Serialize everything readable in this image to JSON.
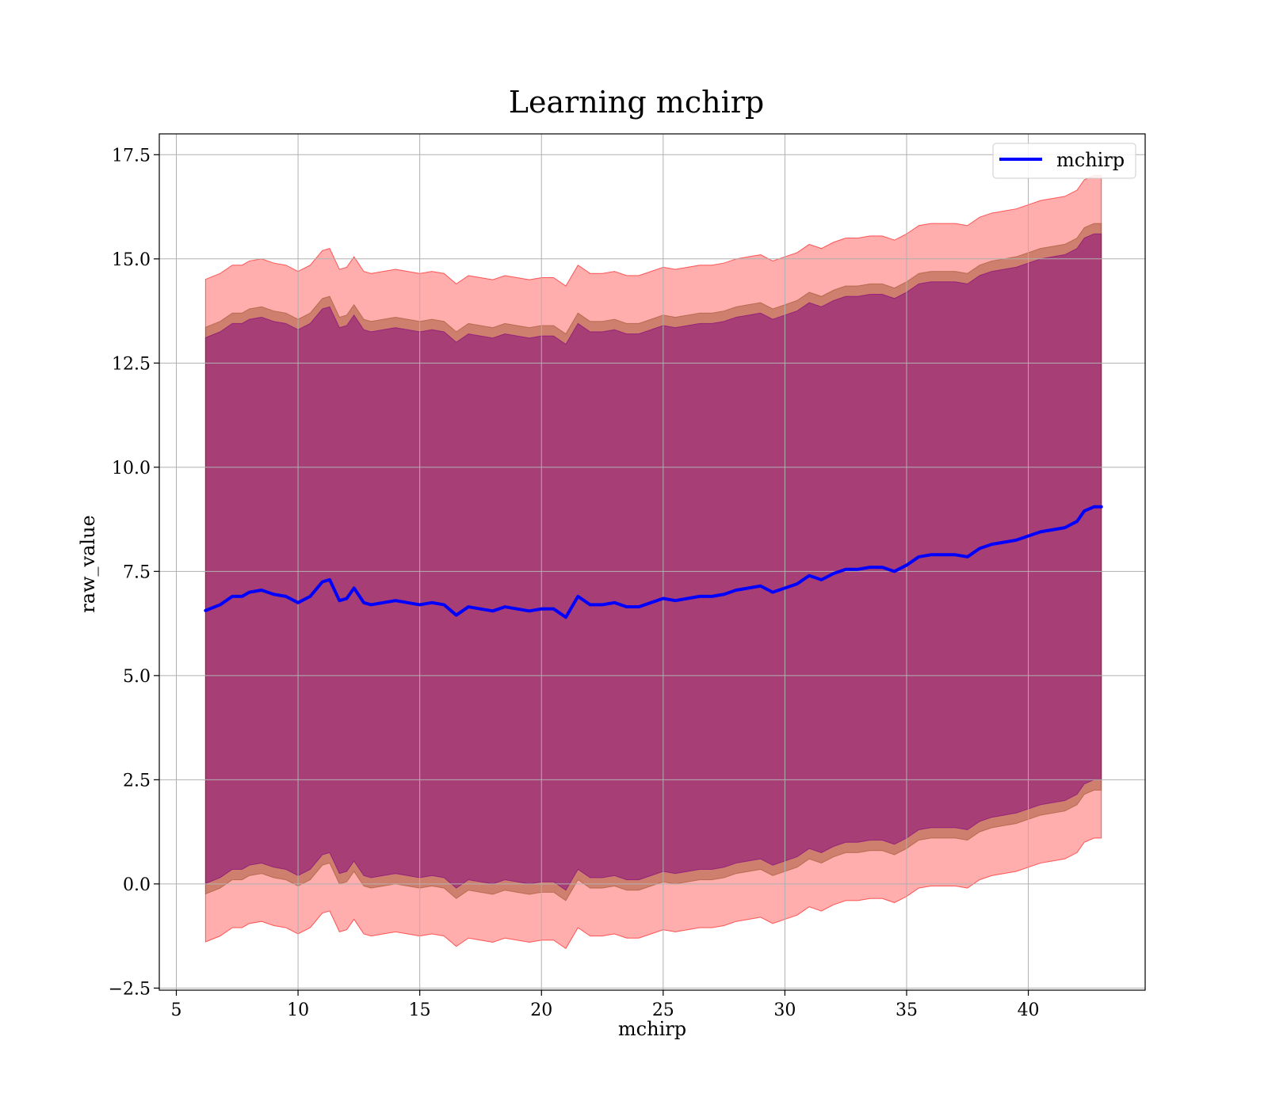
{
  "chart_data": {
    "type": "line",
    "title": "Learning mchirp",
    "xlabel": "mchirp",
    "ylabel": "raw_value",
    "xlim": [
      4.3,
      44.8
    ],
    "ylim": [
      -2.55,
      18.0
    ],
    "x_ticks": [
      5,
      10,
      15,
      20,
      25,
      30,
      35,
      40
    ],
    "x_tick_labels": [
      "5",
      "10",
      "15",
      "20",
      "25",
      "30",
      "35",
      "40"
    ],
    "y_ticks": [
      -2.5,
      0.0,
      2.5,
      5.0,
      7.5,
      10.0,
      12.5,
      15.0,
      17.5
    ],
    "y_tick_labels": [
      "−2.5",
      "0.0",
      "2.5",
      "5.0",
      "7.5",
      "10.0",
      "12.5",
      "15.0",
      "17.5"
    ],
    "grid": true,
    "legend_position": "top-right",
    "colors": {
      "line": "#0000ff",
      "outer_band": "#ff0000",
      "middle_band": "#a0522d",
      "inner_band": "#800080",
      "grid": "#b0b0b0"
    },
    "series": [
      {
        "name": "mchirp",
        "x": [
          6.2,
          6.8,
          7.3,
          7.7,
          8.0,
          8.5,
          9.0,
          9.5,
          10.0,
          10.5,
          11.0,
          11.3,
          11.7,
          12.0,
          12.3,
          12.7,
          13.0,
          13.5,
          14.0,
          14.5,
          15.0,
          15.5,
          16.0,
          16.5,
          17.0,
          17.5,
          18.0,
          18.5,
          19.0,
          19.5,
          20.0,
          20.5,
          21.0,
          21.5,
          22.0,
          22.5,
          23.0,
          23.5,
          24.0,
          24.5,
          25.0,
          25.5,
          26.0,
          26.5,
          27.0,
          27.5,
          28.0,
          28.5,
          29.0,
          29.5,
          30.0,
          30.5,
          31.0,
          31.5,
          32.0,
          32.5,
          33.0,
          33.5,
          34.0,
          34.5,
          35.0,
          35.5,
          36.0,
          36.5,
          37.0,
          37.5,
          38.0,
          38.5,
          39.0,
          39.5,
          40.0,
          40.5,
          41.0,
          41.5,
          42.0,
          42.3,
          42.7,
          43.0
        ],
        "values": [
          6.56,
          6.7,
          6.9,
          6.9,
          7.0,
          7.05,
          6.95,
          6.9,
          6.75,
          6.9,
          7.25,
          7.3,
          6.8,
          6.85,
          7.1,
          6.75,
          6.7,
          6.75,
          6.8,
          6.75,
          6.7,
          6.75,
          6.7,
          6.45,
          6.65,
          6.6,
          6.55,
          6.65,
          6.6,
          6.55,
          6.6,
          6.6,
          6.4,
          6.9,
          6.7,
          6.7,
          6.75,
          6.65,
          6.65,
          6.75,
          6.85,
          6.8,
          6.85,
          6.9,
          6.9,
          6.95,
          7.05,
          7.1,
          7.15,
          7.0,
          7.1,
          7.2,
          7.4,
          7.3,
          7.45,
          7.55,
          7.55,
          7.6,
          7.6,
          7.5,
          7.65,
          7.85,
          7.9,
          7.9,
          7.9,
          7.85,
          8.05,
          8.15,
          8.2,
          8.25,
          8.35,
          8.45,
          8.5,
          8.55,
          8.7,
          8.95,
          9.05,
          9.05
        ]
      }
    ],
    "bands": [
      {
        "x": [
          6.2,
          6.8,
          7.3,
          7.7,
          8.0,
          8.5,
          9.0,
          9.5,
          10.0,
          10.5,
          11.0,
          11.3,
          11.7,
          12.0,
          12.3,
          12.7,
          13.0,
          13.5,
          14.0,
          14.5,
          15.0,
          15.5,
          16.0,
          16.5,
          17.0,
          17.5,
          18.0,
          18.5,
          19.0,
          19.5,
          20.0,
          20.5,
          21.0,
          21.5,
          22.0,
          22.5,
          23.0,
          23.5,
          24.0,
          24.5,
          25.0,
          25.5,
          26.0,
          26.5,
          27.0,
          27.5,
          28.0,
          28.5,
          29.0,
          29.5,
          30.0,
          30.5,
          31.0,
          31.5,
          32.0,
          32.5,
          33.0,
          33.5,
          34.0,
          34.5,
          35.0,
          35.5,
          36.0,
          36.5,
          37.0,
          37.5,
          38.0,
          38.5,
          39.0,
          39.5,
          40.0,
          40.5,
          41.0,
          41.5,
          42.0,
          42.3,
          42.7,
          43.0
        ],
        "lower_offset": -7.95,
        "upper_offset": 7.95
      },
      {
        "x": [
          6.2,
          6.8,
          7.3,
          7.7,
          8.0,
          8.5,
          9.0,
          9.5,
          10.0,
          10.5,
          11.0,
          11.3,
          11.7,
          12.0,
          12.3,
          12.7,
          13.0,
          13.5,
          14.0,
          14.5,
          15.0,
          15.5,
          16.0,
          16.5,
          17.0,
          17.5,
          18.0,
          18.5,
          19.0,
          19.5,
          20.0,
          20.5,
          21.0,
          21.5,
          22.0,
          22.5,
          23.0,
          23.5,
          24.0,
          24.5,
          25.0,
          25.5,
          26.0,
          26.5,
          27.0,
          27.5,
          28.0,
          28.5,
          29.0,
          29.5,
          30.0,
          30.5,
          31.0,
          31.5,
          32.0,
          32.5,
          33.0,
          33.5,
          34.0,
          34.5,
          35.0,
          35.5,
          36.0,
          36.5,
          37.0,
          37.5,
          38.0,
          38.5,
          39.0,
          39.5,
          40.0,
          40.5,
          41.0,
          41.5,
          42.0,
          42.3,
          42.7,
          43.0
        ],
        "lower_offset": -6.8,
        "upper_offset": 6.8
      },
      {
        "x": [
          6.2,
          6.8,
          7.3,
          7.7,
          8.0,
          8.5,
          9.0,
          9.5,
          10.0,
          10.5,
          11.0,
          11.3,
          11.7,
          12.0,
          12.3,
          12.7,
          13.0,
          13.5,
          14.0,
          14.5,
          15.0,
          15.5,
          16.0,
          16.5,
          17.0,
          17.5,
          18.0,
          18.5,
          19.0,
          19.5,
          20.0,
          20.5,
          21.0,
          21.5,
          22.0,
          22.5,
          23.0,
          23.5,
          24.0,
          24.5,
          25.0,
          25.5,
          26.0,
          26.5,
          27.0,
          27.5,
          28.0,
          28.5,
          29.0,
          29.5,
          30.0,
          30.5,
          31.0,
          31.5,
          32.0,
          32.5,
          33.0,
          33.5,
          34.0,
          34.5,
          35.0,
          35.5,
          36.0,
          36.5,
          37.0,
          37.5,
          38.0,
          38.5,
          39.0,
          39.5,
          40.0,
          40.5,
          41.0,
          41.5,
          42.0,
          42.3,
          42.7,
          43.0
        ],
        "lower_offset": -6.55,
        "upper_offset": 6.55
      }
    ]
  }
}
